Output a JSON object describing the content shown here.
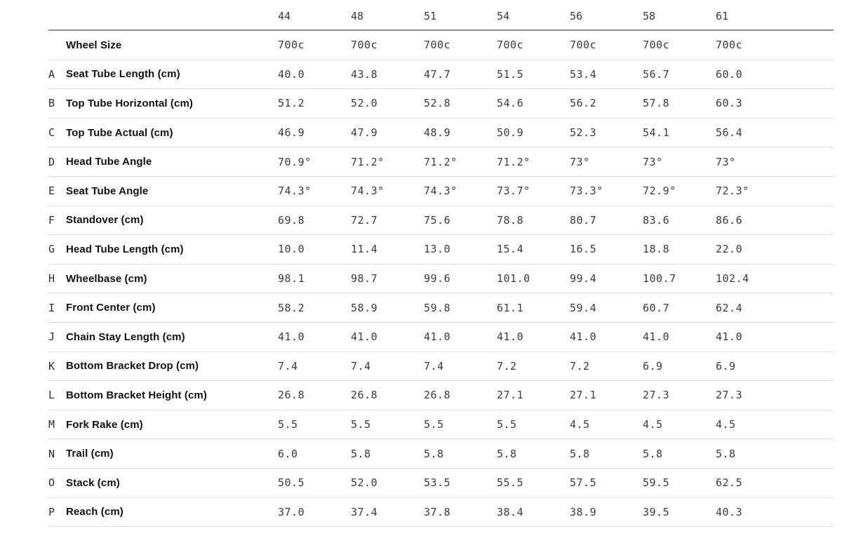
{
  "chart_data": {
    "type": "table",
    "columns": [
      "44",
      "48",
      "51",
      "54",
      "56",
      "58",
      "61"
    ],
    "rows": [
      {
        "letter": "",
        "label": "Wheel Size",
        "values": [
          "700c",
          "700c",
          "700c",
          "700c",
          "700c",
          "700c",
          "700c"
        ]
      },
      {
        "letter": "A",
        "label": "Seat Tube Length (cm)",
        "values": [
          "40.0",
          "43.8",
          "47.7",
          "51.5",
          "53.4",
          "56.7",
          "60.0"
        ]
      },
      {
        "letter": "B",
        "label": "Top Tube Horizontal (cm)",
        "values": [
          "51.2",
          "52.0",
          "52.8",
          "54.6",
          "56.2",
          "57.8",
          "60.3"
        ]
      },
      {
        "letter": "C",
        "label": "Top Tube Actual (cm)",
        "values": [
          "46.9",
          "47.9",
          "48.9",
          "50.9",
          "52.3",
          "54.1",
          "56.4"
        ]
      },
      {
        "letter": "D",
        "label": "Head Tube Angle",
        "values": [
          "70.9°",
          "71.2°",
          "71.2°",
          "71.2°",
          "73°",
          "73°",
          "73°"
        ]
      },
      {
        "letter": "E",
        "label": "Seat Tube Angle",
        "values": [
          "74.3°",
          "74.3°",
          "74.3°",
          "73.7°",
          "73.3°",
          "72.9°",
          "72.3°"
        ]
      },
      {
        "letter": "F",
        "label": "Standover (cm)",
        "values": [
          "69.8",
          "72.7",
          "75.6",
          "78.8",
          "80.7",
          "83.6",
          "86.6"
        ]
      },
      {
        "letter": "G",
        "label": "Head Tube Length (cm)",
        "values": [
          "10.0",
          "11.4",
          "13.0",
          "15.4",
          "16.5",
          "18.8",
          "22.0"
        ]
      },
      {
        "letter": "H",
        "label": "Wheelbase (cm)",
        "values": [
          "98.1",
          "98.7",
          "99.6",
          "101.0",
          "99.4",
          "100.7",
          "102.4"
        ]
      },
      {
        "letter": "I",
        "label": "Front Center (cm)",
        "values": [
          "58.2",
          "58.9",
          "59.8",
          "61.1",
          "59.4",
          "60.7",
          "62.4"
        ]
      },
      {
        "letter": "J",
        "label": "Chain Stay Length (cm)",
        "values": [
          "41.0",
          "41.0",
          "41.0",
          "41.0",
          "41.0",
          "41.0",
          "41.0"
        ]
      },
      {
        "letter": "K",
        "label": "Bottom Bracket Drop (cm)",
        "values": [
          "7.4",
          "7.4",
          "7.4",
          "7.2",
          "7.2",
          "6.9",
          "6.9"
        ]
      },
      {
        "letter": "L",
        "label": "Bottom Bracket Height (cm)",
        "values": [
          "26.8",
          "26.8",
          "26.8",
          "27.1",
          "27.1",
          "27.3",
          "27.3"
        ]
      },
      {
        "letter": "M",
        "label": "Fork Rake (cm)",
        "values": [
          "5.5",
          "5.5",
          "5.5",
          "5.5",
          "4.5",
          "4.5",
          "4.5"
        ]
      },
      {
        "letter": "N",
        "label": "Trail (cm)",
        "values": [
          "6.0",
          "5.8",
          "5.8",
          "5.8",
          "5.8",
          "5.8",
          "5.8"
        ]
      },
      {
        "letter": "O",
        "label": "Stack (cm)",
        "values": [
          "50.5",
          "52.0",
          "53.5",
          "55.5",
          "57.5",
          "59.5",
          "62.5"
        ]
      },
      {
        "letter": "P",
        "label": "Reach (cm)",
        "values": [
          "37.0",
          "37.4",
          "37.8",
          "38.4",
          "38.9",
          "39.5",
          "40.3"
        ]
      }
    ],
    "layout": {
      "header_rule_color": "#8f8f8f",
      "row_separator_color": "#dedede",
      "label_text_color": "#121212",
      "value_text_color": "#3b3b3b",
      "background_color": "#ffffff"
    }
  }
}
